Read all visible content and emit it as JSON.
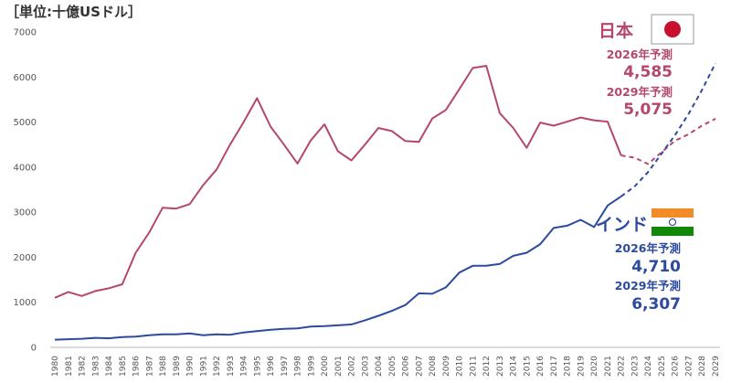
{
  "header": {
    "unit": "［単位:十億USドル］"
  },
  "annotations": {
    "japan": {
      "name": "日本",
      "forecast_2026_label": "2026年予測",
      "forecast_2026_value": "4,585",
      "forecast_2029_label": "2029年予測",
      "forecast_2029_value": "5,075",
      "flag_icon": "japan-flag-icon"
    },
    "india": {
      "name": "インド",
      "forecast_2026_label": "2026年予測",
      "forecast_2026_value": "4,710",
      "forecast_2029_label": "2029年予測",
      "forecast_2029_value": "6,307",
      "flag_icon": "india-flag-icon"
    }
  },
  "chart_data": {
    "type": "line",
    "title": "",
    "xlabel": "",
    "ylabel": "",
    "ylim": [
      0,
      7000
    ],
    "yticks": [
      0,
      1000,
      2000,
      3000,
      4000,
      5000,
      6000,
      7000
    ],
    "x": [
      1980,
      1981,
      1982,
      1983,
      1984,
      1985,
      1986,
      1987,
      1988,
      1989,
      1990,
      1991,
      1992,
      1993,
      1994,
      1995,
      1996,
      1997,
      1998,
      1999,
      2000,
      2001,
      2002,
      2003,
      2004,
      2005,
      2006,
      2007,
      2008,
      2009,
      2010,
      2011,
      2012,
      2013,
      2014,
      2015,
      2016,
      2017,
      2018,
      2019,
      2020,
      2021,
      2022,
      2023,
      2024,
      2025,
      2026,
      2027,
      2028,
      2029
    ],
    "actual_until": 2022,
    "grid": false,
    "legend": "none",
    "series": [
      {
        "name": "日本",
        "color": "#b5476e",
        "values": [
          1100,
          1230,
          1140,
          1250,
          1310,
          1400,
          2100,
          2550,
          3100,
          3080,
          3180,
          3600,
          3950,
          4500,
          5000,
          5530,
          4900,
          4500,
          4080,
          4600,
          4950,
          4350,
          4150,
          4500,
          4870,
          4800,
          4580,
          4560,
          5080,
          5270,
          5730,
          6200,
          6250,
          5200,
          4870,
          4430,
          4990,
          4920,
          5010,
          5100,
          5040,
          5010,
          4260,
          4210,
          4070,
          4330,
          4585,
          4730,
          4920,
          5075
        ]
      },
      {
        "name": "インド",
        "color": "#2d4b9e",
        "values": [
          170,
          180,
          190,
          210,
          200,
          230,
          240,
          270,
          290,
          290,
          310,
          270,
          290,
          280,
          330,
          360,
          390,
          410,
          420,
          460,
          470,
          490,
          510,
          600,
          700,
          810,
          940,
          1200,
          1190,
          1330,
          1660,
          1810,
          1810,
          1850,
          2030,
          2100,
          2290,
          2650,
          2700,
          2830,
          2670,
          3150,
          3350,
          3570,
          3890,
          4300,
          4710,
          5180,
          5710,
          6307
        ]
      }
    ]
  }
}
